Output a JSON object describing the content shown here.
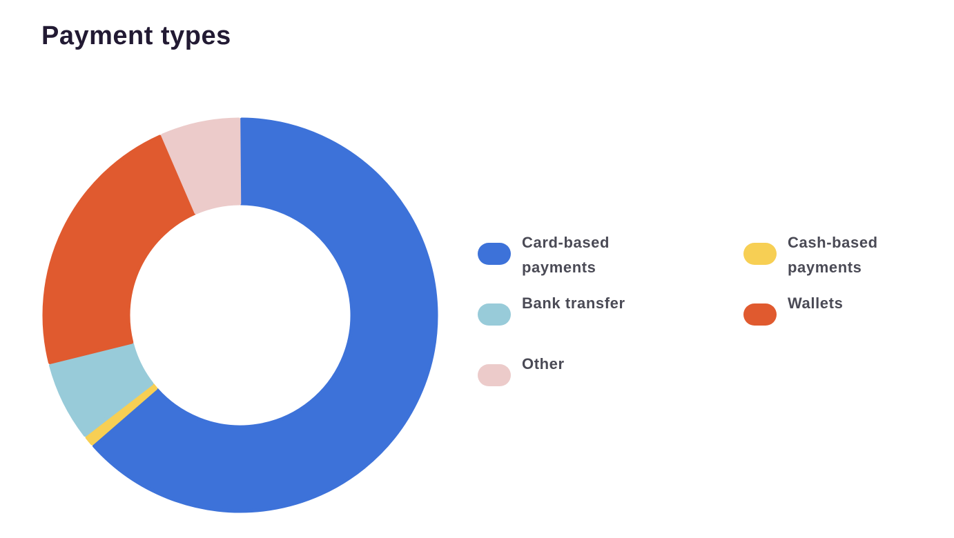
{
  "page": {
    "title": "Payment types"
  },
  "chart_data": {
    "type": "pie",
    "style": "donut",
    "title": "Payment types",
    "legend_position": "right",
    "categories": [
      "Card-based payments",
      "Cash-based payments",
      "Bank transfer",
      "Wallets",
      "Other"
    ],
    "slices": [
      {
        "label": "Card-based payments",
        "value": 63.5,
        "color": "#3d72d9"
      },
      {
        "label": "Cash-based payments",
        "value": 0.9,
        "color": "#f7cf54"
      },
      {
        "label": "Bank transfer",
        "value": 6.6,
        "color": "#98cbd9"
      },
      {
        "label": "Wallets",
        "value": 22.4,
        "color": "#e05a2f"
      },
      {
        "label": "Other",
        "value": 6.6,
        "color": "#eccbca"
      }
    ]
  },
  "legend": [
    {
      "label": "Card-based\npayments",
      "color": "#3d72d9"
    },
    {
      "label": "Cash-based\npayments",
      "color": "#f7cf54"
    },
    {
      "label": "Bank transfer",
      "color": "#98cbd9"
    },
    {
      "label": "Wallets",
      "color": "#e05a2f"
    },
    {
      "label": "Other",
      "color": "#eccbca"
    }
  ]
}
